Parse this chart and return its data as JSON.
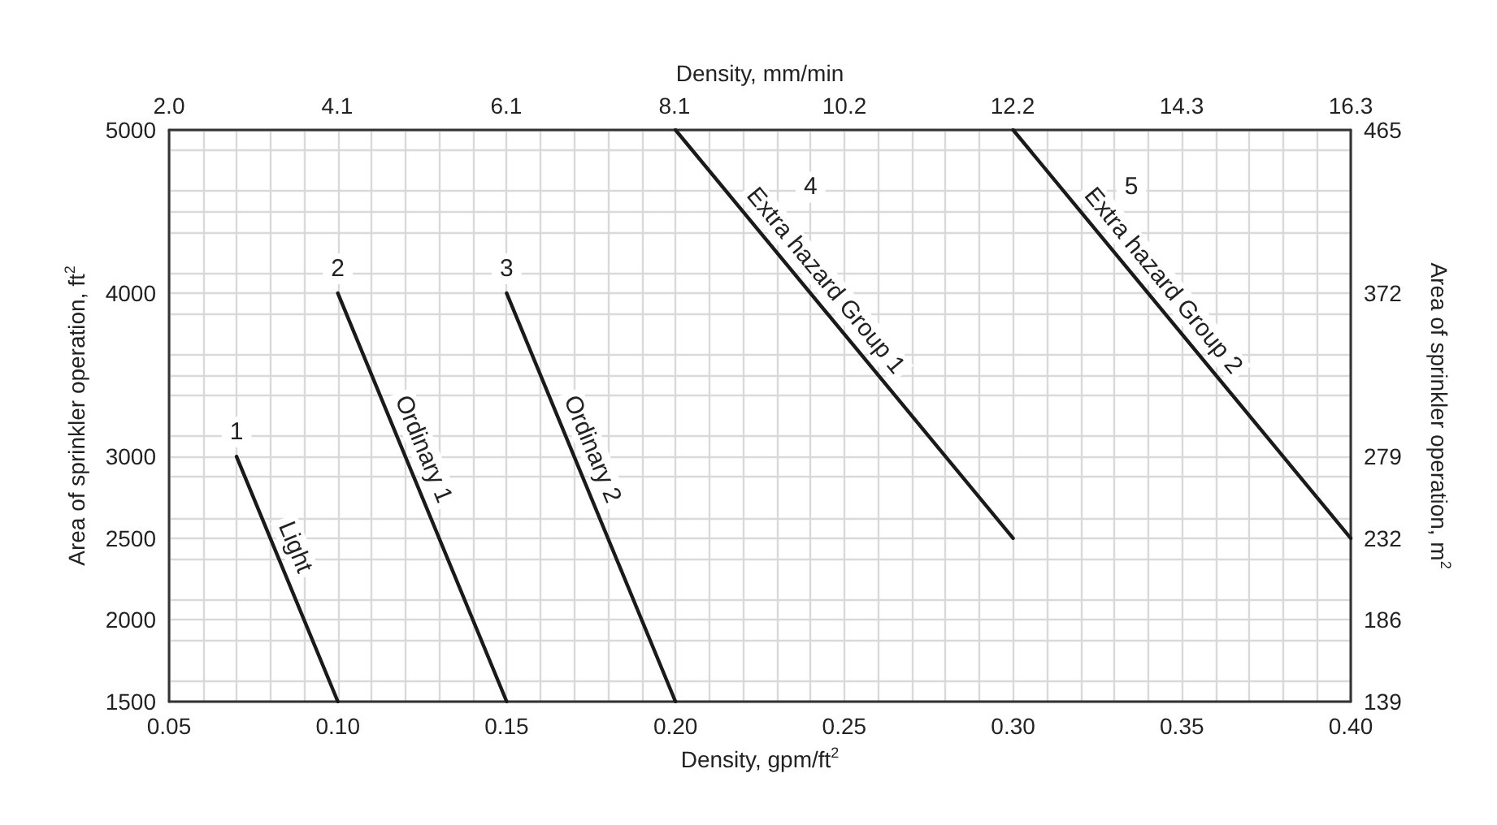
{
  "chart_data": {
    "type": "line",
    "xlabel": "Density, gpm/ft$^{2}$",
    "ylabel": "Area of sprinkler operation, ft$^{2}$",
    "x2label": "Density, mm/min",
    "y2label": "Area of sprinkler operation, m$^{2}$",
    "xlim": [
      0.05,
      0.4
    ],
    "xticks": [
      0.05,
      {
        "value": 0.1,
        "label": "0.10"
      },
      0.15,
      {
        "value": 0.2,
        "label": "0.20"
      },
      0.25,
      {
        "value": 0.3,
        "label": "0.30"
      },
      0.35,
      {
        "value": 0.4,
        "label": "0.40"
      }
    ],
    "ylim": [
      1500,
      5000
    ],
    "yticks": [
      1500,
      2000,
      2500,
      3000,
      {
        "value": 3500,
        "label": null
      },
      4000,
      {
        "value": 4500,
        "label": null
      },
      5000
    ],
    "x2lim": [
      2.04,
      16.3
    ],
    "x2ticks": [
      {
        "value": 2.04,
        "label": "2.0"
      },
      {
        "value": 4.07,
        "label": "4.1"
      },
      {
        "value": 6.11,
        "label": "6.1"
      },
      {
        "value": 8.14,
        "label": "8.1"
      },
      {
        "value": 10.19,
        "label": "10.2"
      },
      {
        "value": 12.22,
        "label": "12.2"
      },
      {
        "value": 14.26,
        "label": "14.3"
      },
      16.3
    ],
    "y2lim": [
      139,
      465
    ],
    "y2ticks": [
      139,
      186,
      232,
      279,
      372,
      465
    ],
    "grid": true,
    "legend": false,
    "marker": "none",
    "line_style": "solid",
    "series": [
      {
        "name": "Light",
        "color": "#1a1a1a",
        "x": [
          0.07,
          0.1
        ],
        "values": [
          3000,
          1500
        ]
      },
      {
        "name": "Ordinary 1",
        "color": "#1a1a1a",
        "x": [
          0.1,
          0.15
        ],
        "values": [
          4000,
          1500
        ]
      },
      {
        "name": "Ordinary 2",
        "color": "#1a1a1a",
        "x": [
          0.15,
          0.2
        ],
        "values": [
          4000,
          1500
        ]
      },
      {
        "name": "Extra hazard Group 1",
        "color": "#1a1a1a",
        "x": [
          0.2,
          0.3
        ],
        "values": [
          5000,
          2500
        ]
      },
      {
        "name": "Extra hazard Group 2",
        "color": "#1a1a1a",
        "x": [
          0.3,
          0.4
        ],
        "values": [
          5000,
          2500
        ]
      }
    ],
    "annotations": [
      {
        "text": "1",
        "x": 0.07,
        "y": 3150
      },
      {
        "text": "2",
        "x": 0.1,
        "y": 4150
      },
      {
        "text": "3",
        "x": 0.15,
        "y": 4150
      },
      {
        "text": "4",
        "x": 0.24,
        "y": 4650
      },
      {
        "text": "5",
        "x": 0.335,
        "y": 4650
      }
    ]
  }
}
